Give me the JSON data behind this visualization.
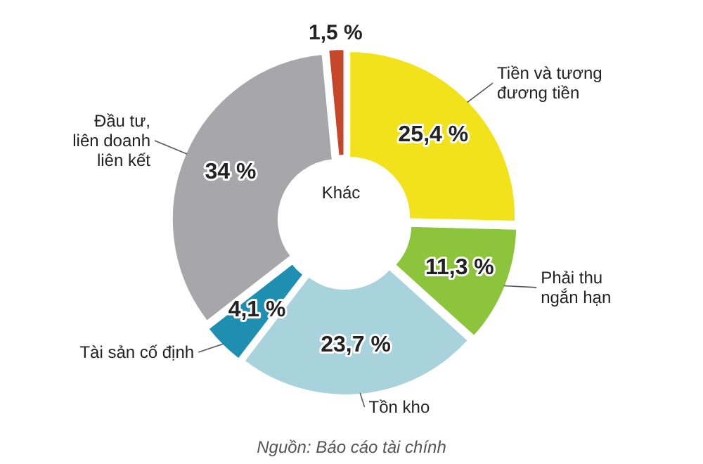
{
  "chart_data": {
    "type": "donut",
    "categories": [
      "Tiền và tương\nđương tiền",
      "Phải thu\nngắn hạn",
      "Tồn kho",
      "Tài sản cố định",
      "Đầu tư,\nliên doanh\nliên kết",
      "Khác"
    ],
    "values": [
      25.4,
      11.3,
      23.7,
      4.1,
      34,
      1.5
    ],
    "value_labels": [
      "25,4 %",
      "11,3 %",
      "23,7 %",
      "4,1 %",
      "34 %",
      "1,5 %"
    ],
    "colors": [
      "#f2e21c",
      "#8cc43c",
      "#a9d3dc",
      "#1e8fb0",
      "#a7a7a9",
      "#c4472a"
    ],
    "annotations": [
      "Nguồn: Báo cáo tài chính"
    ]
  }
}
